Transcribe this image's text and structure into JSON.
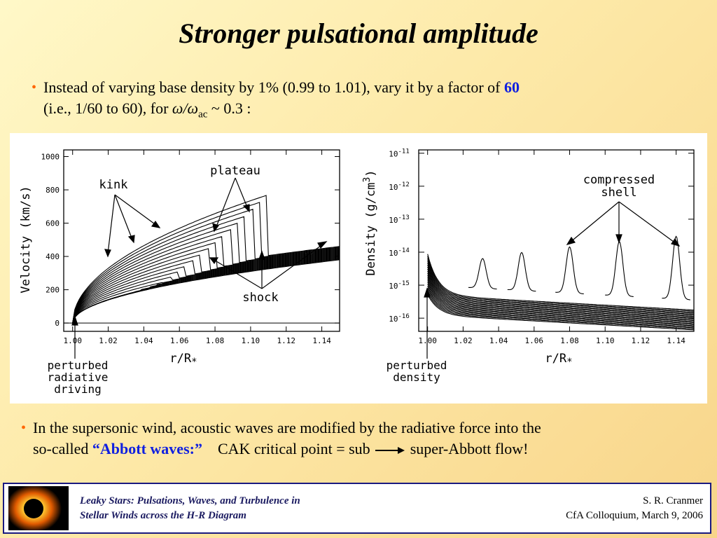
{
  "title": "Stronger pulsational amplitude",
  "bullet1": {
    "line1_prefix": "Instead of varying base density by 1%  (0.99 to 1.01), vary it by a factor of ",
    "line1_highlight": "60",
    "line2_prefix": "(i.e., 1/60 to 60), for ",
    "omega_ratio": "ω/ω",
    "omega_sub": "ac",
    "line2_suffix": " ~ 0.3 :"
  },
  "bullet2": {
    "line1": "In the supersonic wind, acoustic waves are modified by the radiative force into the",
    "line2_prefix": "so-called ",
    "highlight": "“Abbott waves:”",
    "line2_mid": "    CAK critical point = sub ",
    "line2_suffix": " super-Abbott flow!"
  },
  "footer": {
    "left_line1": "Leaky Stars:  Pulsations, Waves, and Turbulence in",
    "left_line2": "Stellar Winds across the H-R Diagram",
    "right_line1": "S. R. Cranmer",
    "right_line2": "CfA Colloquium,  March 9, 2006"
  },
  "colors": {
    "accent_blue": "#1020e0",
    "bullet_orange": "#ff6600",
    "footer_border": "#1a1a80"
  },
  "chart_data": [
    {
      "type": "line",
      "xlabel": "r/R",
      "xlabel_sub": "*",
      "ylabel": "Velocity (km/s)",
      "xlim": [
        0.995,
        1.15
      ],
      "ylim": [
        -50,
        1040
      ],
      "xticks": [
        "1.00",
        "1.02",
        "1.04",
        "1.06",
        "1.08",
        "1.10",
        "1.12",
        "1.14"
      ],
      "yticks": [
        "0",
        "200",
        "400",
        "600",
        "800",
        "1000"
      ],
      "annotations": {
        "kink": "kink",
        "plateau": "plateau",
        "shock": "shock",
        "perturbed_1": "perturbed",
        "perturbed_2": "radiative",
        "perturbed_3": "driving"
      },
      "series_count": 20
    },
    {
      "type": "line",
      "xlabel": "r/R",
      "xlabel_sub": "*",
      "ylabel": "Density (g/cm",
      "ylabel_sup": "3",
      "ylabel_end": ")",
      "xlim": [
        0.995,
        1.15
      ],
      "ylim_log": [
        -16.4,
        -10.9
      ],
      "log_scale": true,
      "xticks": [
        "1.00",
        "1.02",
        "1.04",
        "1.06",
        "1.08",
        "1.10",
        "1.12",
        "1.14"
      ],
      "ytick_base": "10",
      "yticks_exp": [
        "-11",
        "-12",
        "-13",
        "-14",
        "-15",
        "-16"
      ],
      "annotations": {
        "compressed_1": "compressed",
        "compressed_2": "shell",
        "perturbed_1": "perturbed",
        "perturbed_2": "density"
      },
      "shell_peaks_x": [
        1.031,
        1.053,
        1.08,
        1.108,
        1.14
      ],
      "series_count": 20
    }
  ]
}
